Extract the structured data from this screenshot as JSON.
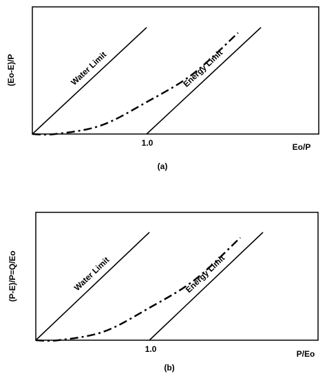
{
  "chart_data": [
    {
      "type": "line",
      "panel_label": "(a)",
      "ylabel": "(Eo-E)/P",
      "xlabel": "Eo/P",
      "x_ticks": [
        "1.0"
      ],
      "series": [
        {
          "name": "Water Limit",
          "style": "solid",
          "points": [
            [
              0.0,
              0.0
            ],
            [
              1.0,
              1.0
            ]
          ]
        },
        {
          "name": "Energy Limit",
          "style": "solid",
          "points": [
            [
              1.0,
              0.0
            ],
            [
              2.0,
              1.0
            ]
          ]
        },
        {
          "style": "dash-dot",
          "points": [
            [
              0.0,
              0.0
            ],
            [
              0.2,
              0.0
            ],
            [
              0.6,
              0.08
            ],
            [
              1.0,
              0.3
            ],
            [
              1.4,
              0.56
            ],
            [
              1.8,
              0.95
            ]
          ]
        }
      ]
    },
    {
      "type": "line",
      "panel_label": "(b)",
      "ylabel": "(P-E)/P=Q/Eo",
      "xlabel": "P/Eo",
      "x_ticks": [
        "1.0"
      ],
      "series": [
        {
          "name": "Water Limit",
          "style": "solid",
          "points": [
            [
              0.0,
              0.0
            ],
            [
              1.0,
              1.0
            ]
          ]
        },
        {
          "name": "Energy Limit",
          "style": "solid",
          "points": [
            [
              1.0,
              0.0
            ],
            [
              2.0,
              1.0
            ]
          ]
        },
        {
          "style": "dash-dot",
          "points": [
            [
              0.0,
              0.0
            ],
            [
              0.2,
              0.0
            ],
            [
              0.6,
              0.08
            ],
            [
              1.0,
              0.3
            ],
            [
              1.4,
              0.56
            ],
            [
              1.8,
              0.95
            ]
          ]
        }
      ]
    }
  ]
}
